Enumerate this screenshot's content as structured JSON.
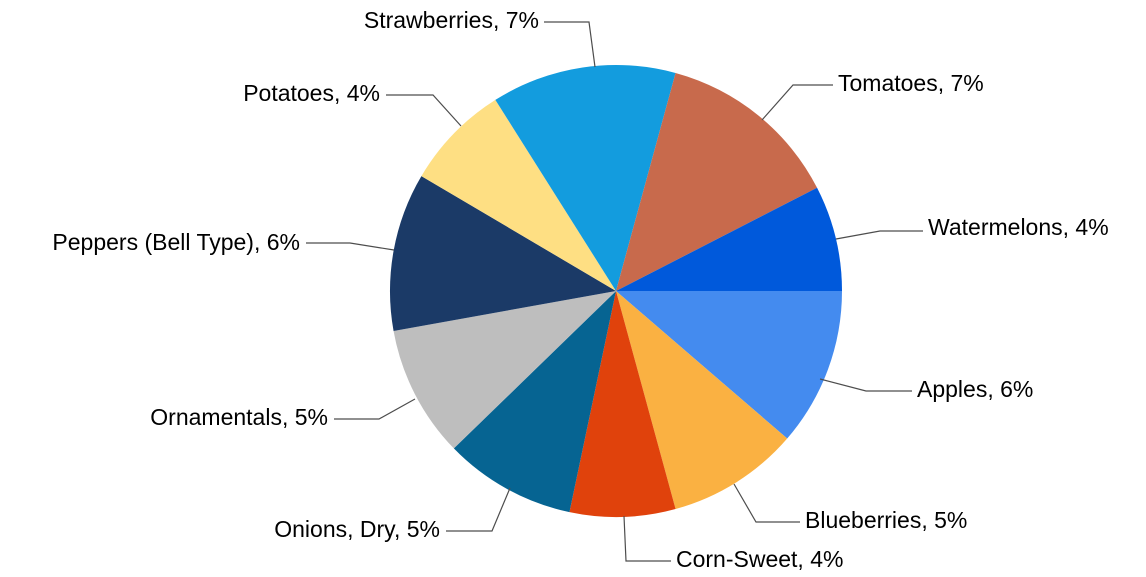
{
  "chart_data": {
    "type": "pie",
    "title": "",
    "start_direction": "east",
    "direction": "clockwise",
    "slices": [
      {
        "label": "Apples",
        "value": 6,
        "display": "Apples, 6%",
        "color": "#448BEF"
      },
      {
        "label": "Blueberries",
        "value": 5,
        "display": "Blueberries, 5%",
        "color": "#FAB142"
      },
      {
        "label": "Corn-Sweet",
        "value": 4,
        "display": "Corn-Sweet, 4%",
        "color": "#E0420C"
      },
      {
        "label": "Onions, Dry",
        "value": 5,
        "display": "Onions, Dry, 5%",
        "color": "#066492"
      },
      {
        "label": "Ornamentals",
        "value": 5,
        "display": "Ornamentals, 5%",
        "color": "#BEBEBE"
      },
      {
        "label": "Peppers (Bell Type)",
        "value": 6,
        "display": "Peppers (Bell Type), 6%",
        "color": "#1B3A67"
      },
      {
        "label": "Potatoes",
        "value": 4,
        "display": "Potatoes, 4%",
        "color": "#FEDF83"
      },
      {
        "label": "Strawberries",
        "value": 7,
        "display": "Strawberries, 7%",
        "color": "#139CDE"
      },
      {
        "label": "Tomatoes",
        "value": 7,
        "display": "Tomatoes, 7%",
        "color": "#C86A4C"
      },
      {
        "label": "Watermelons",
        "value": 4,
        "display": "Watermelons, 4%",
        "color": "#0059DB"
      }
    ]
  }
}
